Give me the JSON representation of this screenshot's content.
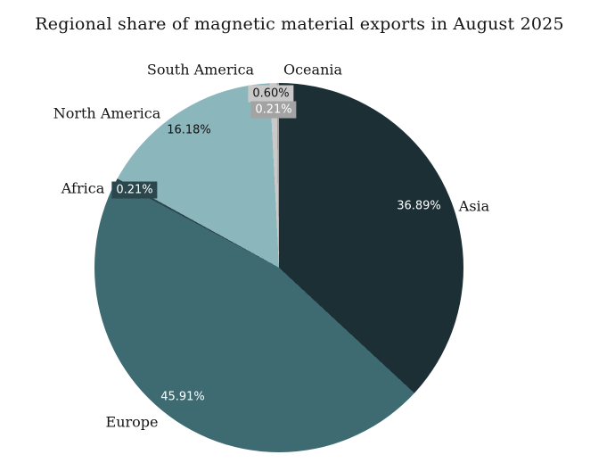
{
  "title": "Regional share of magnetic material exports in August 2025",
  "chart_data": {
    "type": "pie",
    "title": "Regional share of magnetic material exports in August 2025",
    "start_angle_deg": 0,
    "direction": "clockwise",
    "legend_position": "none",
    "slices": [
      {
        "label": "Asia",
        "value": 36.89,
        "display": "36.89%",
        "color": "#1c2f35",
        "value_label_style": "white-on-slice"
      },
      {
        "label": "Europe",
        "value": 45.91,
        "display": "45.91%",
        "color": "#3e6a71",
        "value_label_style": "white-on-slice"
      },
      {
        "label": "Africa",
        "value": 0.21,
        "display": "0.21%",
        "color": "#2b464c",
        "value_label_style": "white-on-box"
      },
      {
        "label": "North America",
        "value": 16.18,
        "display": "16.18%",
        "color": "#8ab6bc",
        "value_label_style": "dark-on-slice"
      },
      {
        "label": "South America",
        "value": 0.6,
        "display": "0.60%",
        "color": "#c9c9c9",
        "value_label_style": "dark-on-box"
      },
      {
        "label": "Oceania",
        "value": 0.21,
        "display": "0.21%",
        "color": "#a3a3a3",
        "value_label_style": "white-on-box"
      }
    ],
    "colors": {
      "background": "#ffffff",
      "text": "#151515",
      "light_value_text": "#ffffff"
    }
  }
}
